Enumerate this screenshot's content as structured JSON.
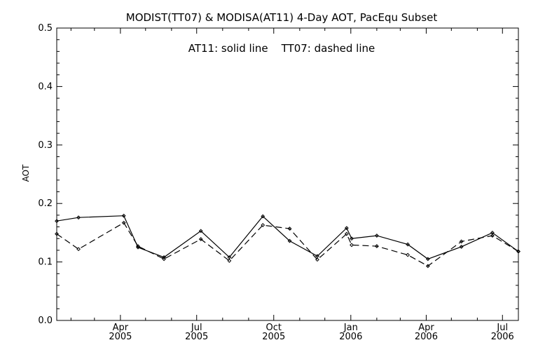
{
  "chart_data": {
    "type": "line",
    "title": "MODIST(TT07) & MODISA(AT11) 4-Day AOT, PacEqu Subset",
    "annotation": "AT11: solid line    TT07: dashed line",
    "xlabel": "",
    "ylabel": "AOT",
    "ylim": [
      0.0,
      0.5
    ],
    "yticks": [
      "0.0",
      "0.1",
      "0.2",
      "0.3",
      "0.4",
      "0.5"
    ],
    "xlim": [
      "2005-01-15",
      "2006-07-20"
    ],
    "xticks": [
      {
        "date": "2005-04-01",
        "month": "Apr",
        "year": "2005"
      },
      {
        "date": "2005-07-01",
        "month": "Jul",
        "year": "2005"
      },
      {
        "date": "2005-10-01",
        "month": "Oct",
        "year": "2005"
      },
      {
        "date": "2006-01-01",
        "month": "Jan",
        "year": "2006"
      },
      {
        "date": "2006-04-01",
        "month": "Apr",
        "year": "2006"
      },
      {
        "date": "2006-07-01",
        "month": "Jul",
        "year": "2006"
      }
    ],
    "grid": false,
    "series": [
      {
        "name": "AT11",
        "style": "solid",
        "color": "#000000",
        "points": [
          {
            "x": "2005-01-15",
            "y": 0.17
          },
          {
            "x": "2005-02-10",
            "y": 0.176
          },
          {
            "x": "2005-04-05",
            "y": 0.179
          },
          {
            "x": "2005-04-22",
            "y": 0.125
          },
          {
            "x": "2005-05-23",
            "y": 0.108
          },
          {
            "x": "2005-07-06",
            "y": 0.153
          },
          {
            "x": "2005-08-09",
            "y": 0.108
          },
          {
            "x": "2005-09-18",
            "y": 0.178
          },
          {
            "x": "2005-10-20",
            "y": 0.136
          },
          {
            "x": "2005-11-22",
            "y": 0.11
          },
          {
            "x": "2005-12-27",
            "y": 0.158
          },
          {
            "x": "2006-01-02",
            "y": 0.14
          },
          {
            "x": "2006-02-01",
            "y": 0.145
          },
          {
            "x": "2006-03-10",
            "y": 0.13
          },
          {
            "x": "2006-04-03",
            "y": 0.105
          },
          {
            "x": "2006-05-13",
            "y": 0.126
          },
          {
            "x": "2006-06-19",
            "y": 0.15
          },
          {
            "x": "2006-07-20",
            "y": 0.118
          }
        ]
      },
      {
        "name": "TT07",
        "style": "dashed",
        "color": "#000000",
        "points": [
          {
            "x": "2005-01-15",
            "y": 0.148
          },
          {
            "x": "2005-02-10",
            "y": 0.122
          },
          {
            "x": "2005-04-05",
            "y": 0.167
          },
          {
            "x": "2005-04-22",
            "y": 0.127
          },
          {
            "x": "2005-05-23",
            "y": 0.105
          },
          {
            "x": "2005-07-06",
            "y": 0.139
          },
          {
            "x": "2005-08-09",
            "y": 0.102
          },
          {
            "x": "2005-09-18",
            "y": 0.163
          },
          {
            "x": "2005-10-20",
            "y": 0.157
          },
          {
            "x": "2005-11-22",
            "y": 0.104
          },
          {
            "x": "2005-12-27",
            "y": 0.148
          },
          {
            "x": "2006-01-02",
            "y": 0.129
          },
          {
            "x": "2006-02-01",
            "y": 0.127
          },
          {
            "x": "2006-03-10",
            "y": 0.112
          },
          {
            "x": "2006-04-03",
            "y": 0.093
          },
          {
            "x": "2006-05-13",
            "y": 0.135
          },
          {
            "x": "2006-06-19",
            "y": 0.145
          },
          {
            "x": "2006-07-20",
            "y": 0.118
          }
        ]
      }
    ]
  }
}
